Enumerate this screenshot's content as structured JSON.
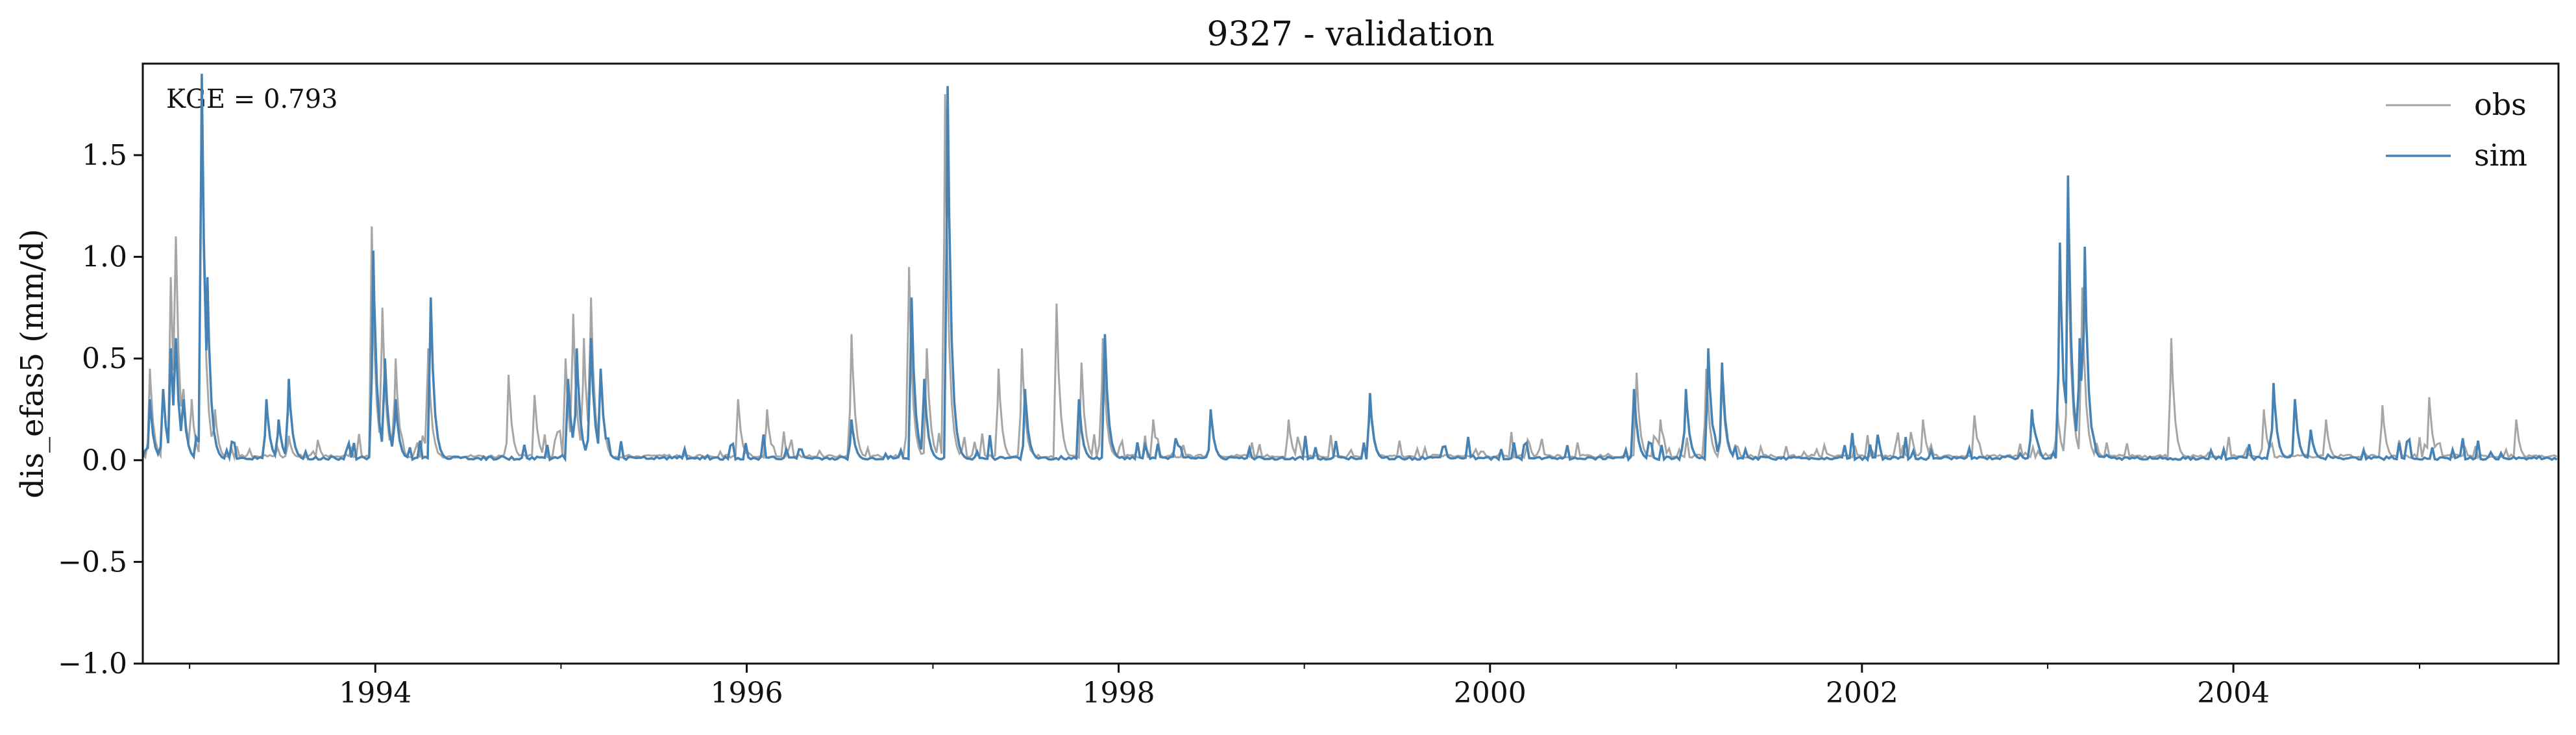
{
  "chart_data": {
    "type": "line",
    "title": "9327 - validation",
    "xlabel": "",
    "ylabel": "dis_efas5 (mm/d)",
    "annotation": "KGE = 0.793",
    "xlim": [
      "1992-10-01",
      "2005-10-01"
    ],
    "ylim": [
      -1.0,
      1.95
    ],
    "x_ticks": [
      "1994",
      "1996",
      "1998",
      "2000",
      "2002",
      "2004"
    ],
    "y_ticks": [
      "−1.0",
      "−0.5",
      "0.0",
      "0.5",
      "1.0",
      "1.5"
    ],
    "y_tick_values": [
      -1.0,
      -0.5,
      0.0,
      0.5,
      1.0,
      1.5
    ],
    "grid": false,
    "legend_position": "top-right",
    "series": [
      {
        "name": "obs",
        "color": "#a6a6a6",
        "baseline": 0.02,
        "peaks": [
          [
            "1992-10-15",
            0.45
          ],
          [
            "1992-11-10",
            0.35
          ],
          [
            "1992-11-25",
            0.9
          ],
          [
            "1992-12-05",
            1.1
          ],
          [
            "1992-12-20",
            0.35
          ],
          [
            "1993-01-05",
            0.3
          ],
          [
            "1993-01-25",
            1.75
          ],
          [
            "1993-02-20",
            0.25
          ],
          [
            "1993-07-15",
            0.12
          ],
          [
            "1993-09-10",
            0.1
          ],
          [
            "1993-12-25",
            1.15
          ],
          [
            "1994-01-15",
            0.75
          ],
          [
            "1994-02-10",
            0.5
          ],
          [
            "1994-04-15",
            0.55
          ],
          [
            "1994-09-20",
            0.42
          ],
          [
            "1994-11-10",
            0.32
          ],
          [
            "1995-01-10",
            0.5
          ],
          [
            "1995-01-25",
            0.72
          ],
          [
            "1995-02-15",
            0.6
          ],
          [
            "1995-03-01",
            0.8
          ],
          [
            "1995-03-20",
            0.45
          ],
          [
            "1995-12-15",
            0.3
          ],
          [
            "1996-02-10",
            0.25
          ],
          [
            "1996-07-25",
            0.62
          ],
          [
            "1996-11-15",
            0.95
          ],
          [
            "1996-12-20",
            0.55
          ],
          [
            "1997-01-25",
            1.8
          ],
          [
            "1997-05-10",
            0.45
          ],
          [
            "1997-06-25",
            0.55
          ],
          [
            "1997-09-01",
            0.77
          ],
          [
            "1997-10-20",
            0.48
          ],
          [
            "1997-12-01",
            0.6
          ],
          [
            "1998-03-10",
            0.2
          ],
          [
            "1998-07-01",
            0.25
          ],
          [
            "1998-12-01",
            0.2
          ],
          [
            "1999-05-10",
            0.3
          ],
          [
            "2000-03-15",
            0.1
          ],
          [
            "2000-10-15",
            0.43
          ],
          [
            "2000-12-01",
            0.2
          ],
          [
            "2001-03-01",
            0.45
          ],
          [
            "2001-04-01",
            0.4
          ],
          [
            "2002-05-01",
            0.2
          ],
          [
            "2002-08-10",
            0.22
          ],
          [
            "2003-01-20",
            0.25
          ],
          [
            "2003-02-10",
            1.1
          ],
          [
            "2003-03-10",
            0.85
          ],
          [
            "2003-09-01",
            0.6
          ],
          [
            "2004-03-01",
            0.25
          ],
          [
            "2004-07-01",
            0.2
          ],
          [
            "2004-10-20",
            0.27
          ],
          [
            "2005-01-20",
            0.31
          ],
          [
            "2005-07-10",
            0.2
          ]
        ]
      },
      {
        "name": "sim",
        "color": "#4682b4",
        "baseline": 0.01,
        "peaks": [
          [
            "1992-10-15",
            0.3
          ],
          [
            "1992-11-10",
            0.35
          ],
          [
            "1992-11-25",
            0.55
          ],
          [
            "1992-12-05",
            0.6
          ],
          [
            "1992-12-20",
            0.3
          ],
          [
            "1993-01-25",
            1.9
          ],
          [
            "1993-02-05",
            0.9
          ],
          [
            "1993-06-01",
            0.3
          ],
          [
            "1993-06-25",
            0.2
          ],
          [
            "1993-07-15",
            0.4
          ],
          [
            "1993-12-28",
            1.03
          ],
          [
            "1994-01-20",
            0.5
          ],
          [
            "1994-02-10",
            0.3
          ],
          [
            "1994-04-20",
            0.8
          ],
          [
            "1995-01-15",
            0.4
          ],
          [
            "1995-02-01",
            0.55
          ],
          [
            "1995-03-01",
            0.6
          ],
          [
            "1995-03-20",
            0.45
          ],
          [
            "1996-07-25",
            0.2
          ],
          [
            "1996-11-20",
            0.8
          ],
          [
            "1996-12-15",
            0.4
          ],
          [
            "1997-01-30",
            1.84
          ],
          [
            "1997-07-01",
            0.35
          ],
          [
            "1997-10-15",
            0.3
          ],
          [
            "1997-12-05",
            0.62
          ],
          [
            "1998-07-01",
            0.25
          ],
          [
            "1999-05-10",
            0.33
          ],
          [
            "2000-10-10",
            0.35
          ],
          [
            "2001-01-20",
            0.35
          ],
          [
            "2001-03-05",
            0.55
          ],
          [
            "2001-04-01",
            0.48
          ],
          [
            "2002-12-01",
            0.25
          ],
          [
            "2003-01-25",
            1.07
          ],
          [
            "2003-02-10",
            1.4
          ],
          [
            "2003-03-05",
            0.6
          ],
          [
            "2003-03-15",
            1.05
          ],
          [
            "2004-03-20",
            0.38
          ],
          [
            "2004-05-01",
            0.3
          ],
          [
            "2004-06-01",
            0.15
          ]
        ]
      }
    ]
  }
}
